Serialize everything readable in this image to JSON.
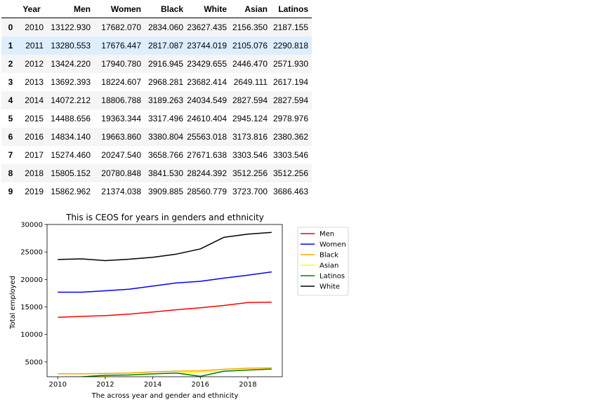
{
  "table": {
    "columns": [
      "Year",
      "Men",
      "Women",
      "Black",
      "White",
      "Asian",
      "Latinos"
    ],
    "rows": [
      {
        "index": "0",
        "year": "2010",
        "men": "13122.930",
        "women": "17682.070",
        "black": "2834.060",
        "white": "23627.435",
        "asian": "2156.350",
        "latinos": "2187.155"
      },
      {
        "index": "1",
        "year": "2011",
        "men": "13280.553",
        "women": "17676.447",
        "black": "2817.087",
        "white": "23744.019",
        "asian": "2105.076",
        "latinos": "2290.818"
      },
      {
        "index": "2",
        "year": "2012",
        "men": "13424.220",
        "women": "17940.780",
        "black": "2916.945",
        "white": "23429.655",
        "asian": "2446.470",
        "latinos": "2571.930"
      },
      {
        "index": "3",
        "year": "2013",
        "men": "13692.393",
        "women": "18224.607",
        "black": "2968.281",
        "white": "23682.414",
        "asian": "2649.111",
        "latinos": "2617.194"
      },
      {
        "index": "4",
        "year": "2014",
        "men": "14072.212",
        "women": "18806.788",
        "black": "3189.263",
        "white": "24034.549",
        "asian": "2827.594",
        "latinos": "2827.594"
      },
      {
        "index": "5",
        "year": "2015",
        "men": "14488.656",
        "women": "19363.344",
        "black": "3317.496",
        "white": "24610.404",
        "asian": "2945.124",
        "latinos": "2978.976"
      },
      {
        "index": "6",
        "year": "2016",
        "men": "14834.140",
        "women": "19663.860",
        "black": "3380.804",
        "white": "25563.018",
        "asian": "3173.816",
        "latinos": "2380.362"
      },
      {
        "index": "7",
        "year": "2017",
        "men": "15274.460",
        "women": "20247.540",
        "black": "3658.766",
        "white": "27671.638",
        "asian": "3303.546",
        "latinos": "3303.546"
      },
      {
        "index": "8",
        "year": "2018",
        "men": "15805.152",
        "women": "20780.848",
        "black": "3841.530",
        "white": "28244.392",
        "asian": "3512.256",
        "latinos": "3512.256"
      },
      {
        "index": "9",
        "year": "2019",
        "men": "15862.962",
        "women": "21374.038",
        "black": "3909.885",
        "white": "28560.779",
        "asian": "3723.700",
        "latinos": "3686.463"
      }
    ],
    "hover_row": 1
  },
  "chart_data": {
    "type": "line",
    "title": "This is CEOS for years in genders and ethnicity",
    "xlabel": "The across year and gender  and ethnicity",
    "ylabel": "Total employed",
    "x": [
      2010,
      2011,
      2012,
      2013,
      2014,
      2015,
      2016,
      2017,
      2018,
      2019
    ],
    "xlim": [
      2009.55,
      2019.45
    ],
    "ylim": [
      2300,
      30000
    ],
    "xticks": [
      2010,
      2012,
      2014,
      2016,
      2018
    ],
    "yticks": [
      5000,
      10000,
      15000,
      20000,
      25000,
      30000
    ],
    "grid": false,
    "legend_position": "outside-right",
    "series": [
      {
        "name": "Men",
        "color": "#ff0000",
        "values": [
          13122.93,
          13280.553,
          13424.22,
          13692.393,
          14072.212,
          14488.656,
          14834.14,
          15274.46,
          15805.152,
          15862.962
        ]
      },
      {
        "name": "Women",
        "color": "#0000ff",
        "values": [
          17682.07,
          17676.447,
          17940.78,
          18224.607,
          18806.788,
          19363.344,
          19663.86,
          20247.54,
          20780.848,
          21374.038
        ]
      },
      {
        "name": "Black",
        "color": "#ffa500",
        "values": [
          2834.06,
          2817.087,
          2916.945,
          2968.281,
          3189.263,
          3317.496,
          3380.804,
          3658.766,
          3841.53,
          3909.885
        ]
      },
      {
        "name": "Asian",
        "color": "#ffff00",
        "values": [
          2156.35,
          2105.076,
          2446.47,
          2649.111,
          2827.594,
          2945.124,
          3173.816,
          3303.546,
          3512.256,
          3723.7
        ]
      },
      {
        "name": "Latinos",
        "color": "#008000",
        "values": [
          2187.155,
          2290.818,
          2571.93,
          2617.194,
          2827.594,
          2978.976,
          2380.362,
          3303.546,
          3512.256,
          3686.463
        ]
      },
      {
        "name": "White",
        "color": "#000000",
        "values": [
          23627.435,
          23744.019,
          23429.655,
          23682.414,
          24034.549,
          24610.404,
          25563.018,
          27671.638,
          28244.392,
          28560.779
        ]
      }
    ]
  }
}
